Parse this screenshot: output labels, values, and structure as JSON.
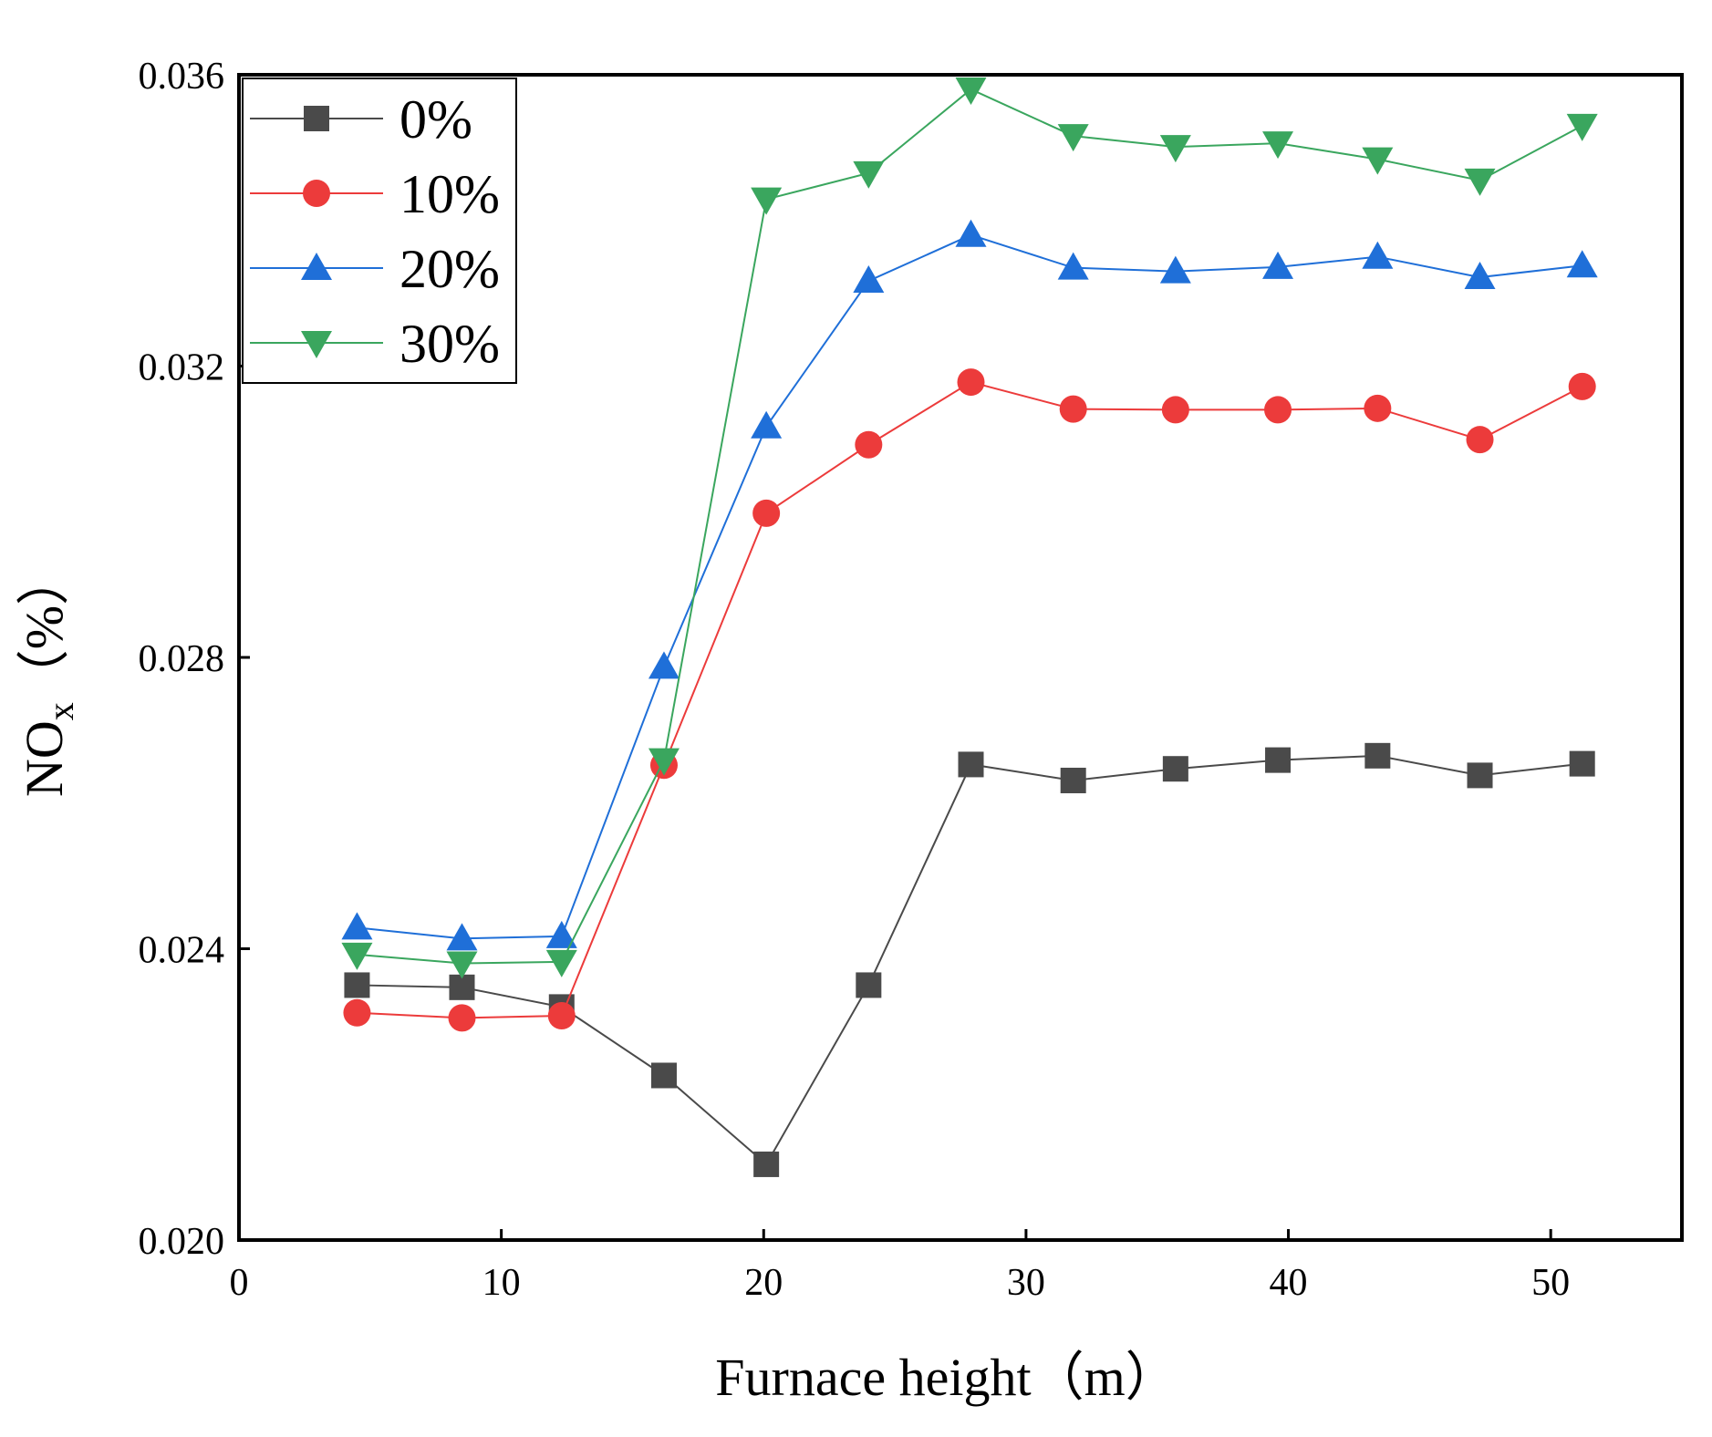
{
  "chart_data": {
    "type": "line",
    "title": "",
    "xlabel": "Furnace height（m）",
    "ylabel_main": "NO",
    "ylabel_sub": "x",
    "ylabel_suffix": "（%）",
    "xlim": [
      0,
      55
    ],
    "ylim": [
      0.02,
      0.036
    ],
    "x_ticks": [
      0,
      10,
      20,
      30,
      40,
      50
    ],
    "x_tick_labels": [
      "0",
      "10",
      "20",
      "30",
      "40",
      "50"
    ],
    "y_ticks": [
      0.02,
      0.024,
      0.028,
      0.032,
      0.036
    ],
    "y_tick_labels": [
      "0.020",
      "0.024",
      "0.028",
      "0.032",
      "0.036"
    ],
    "grid": false,
    "legend_position": "top-left",
    "x": [
      4.5,
      8.5,
      12.3,
      16.2,
      20.1,
      24.0,
      27.9,
      31.8,
      35.7,
      39.6,
      43.4,
      47.3,
      51.2
    ],
    "series": [
      {
        "name": "0%",
        "marker": "square",
        "color": "#4a4a4a",
        "values": [
          0.0235,
          0.02347,
          0.0232,
          0.02226,
          0.02104,
          0.0235,
          0.02653,
          0.02631,
          0.02647,
          0.02659,
          0.02665,
          0.02638,
          0.02654
        ]
      },
      {
        "name": "10%",
        "marker": "circle",
        "color": "#ec3b3b",
        "values": [
          0.02312,
          0.02305,
          0.02308,
          0.02652,
          0.02998,
          0.03092,
          0.03178,
          0.03141,
          0.0314,
          0.0314,
          0.03142,
          0.03099,
          0.03172
        ]
      },
      {
        "name": "20%",
        "marker": "triangle-up",
        "color": "#1f6fd8",
        "values": [
          0.02429,
          0.02414,
          0.02417,
          0.02787,
          0.03117,
          0.03317,
          0.0338,
          0.03335,
          0.0333,
          0.03336,
          0.0335,
          0.03322,
          0.03338
        ]
      },
      {
        "name": "30%",
        "marker": "triangle-down",
        "color": "#3aa65e",
        "values": [
          0.02392,
          0.0238,
          0.02382,
          0.02659,
          0.03429,
          0.03465,
          0.0358,
          0.03516,
          0.03501,
          0.03506,
          0.03484,
          0.03455,
          0.0353
        ]
      }
    ]
  }
}
